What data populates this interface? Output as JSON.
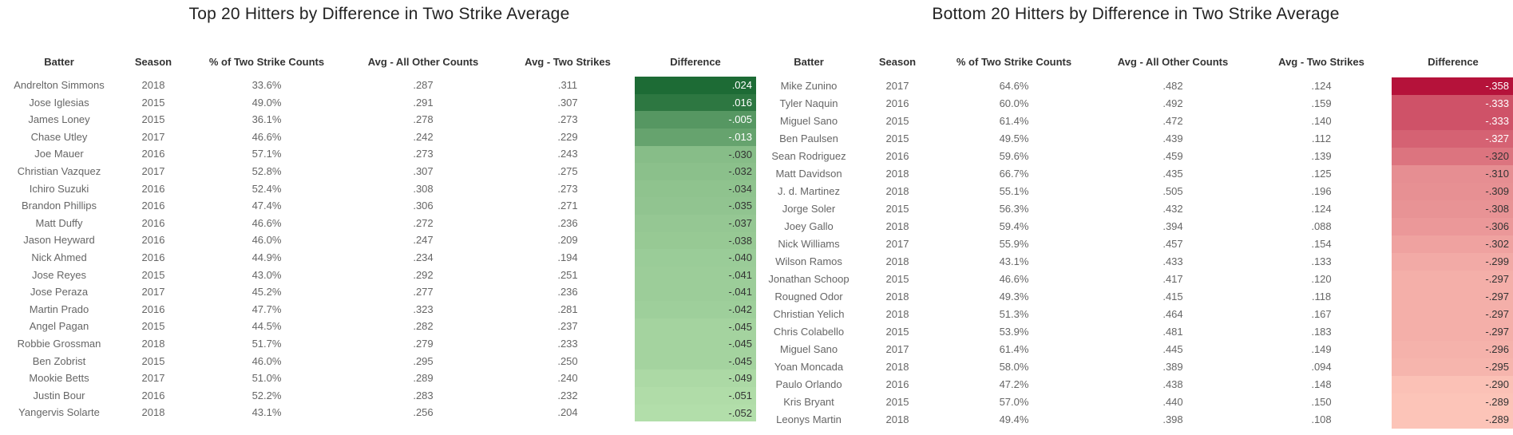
{
  "chart_data": [
    {
      "type": "table",
      "title": "Top 20 Hitters by Difference in Two Strike Average",
      "columns": [
        "Batter",
        "Season",
        "% of Two Strike Counts",
        "Avg - All Other Counts",
        "Avg - Two Strikes",
        "Difference"
      ],
      "rows": [
        [
          "Andrelton Simmons",
          "2018",
          "33.6%",
          ".287",
          ".311",
          ".024"
        ],
        [
          "Jose Iglesias",
          "2015",
          "49.0%",
          ".291",
          ".307",
          ".016"
        ],
        [
          "James Loney",
          "2015",
          "36.1%",
          ".278",
          ".273",
          "-.005"
        ],
        [
          "Chase Utley",
          "2017",
          "46.6%",
          ".242",
          ".229",
          "-.013"
        ],
        [
          "Joe Mauer",
          "2016",
          "57.1%",
          ".273",
          ".243",
          "-.030"
        ],
        [
          "Christian Vazquez",
          "2017",
          "52.8%",
          ".307",
          ".275",
          "-.032"
        ],
        [
          "Ichiro Suzuki",
          "2016",
          "52.4%",
          ".308",
          ".273",
          "-.034"
        ],
        [
          "Brandon Phillips",
          "2016",
          "47.4%",
          ".306",
          ".271",
          "-.035"
        ],
        [
          "Matt Duffy",
          "2016",
          "46.6%",
          ".272",
          ".236",
          "-.037"
        ],
        [
          "Jason Heyward",
          "2016",
          "46.0%",
          ".247",
          ".209",
          "-.038"
        ],
        [
          "Nick Ahmed",
          "2016",
          "44.9%",
          ".234",
          ".194",
          "-.040"
        ],
        [
          "Jose Reyes",
          "2015",
          "43.0%",
          ".292",
          ".251",
          "-.041"
        ],
        [
          "Jose Peraza",
          "2017",
          "45.2%",
          ".277",
          ".236",
          "-.041"
        ],
        [
          "Martin Prado",
          "2016",
          "47.7%",
          ".323",
          ".281",
          "-.042"
        ],
        [
          "Angel Pagan",
          "2015",
          "44.5%",
          ".282",
          ".237",
          "-.045"
        ],
        [
          "Robbie Grossman",
          "2018",
          "51.7%",
          ".279",
          ".233",
          "-.045"
        ],
        [
          "Ben Zobrist",
          "2015",
          "46.0%",
          ".295",
          ".250",
          "-.045"
        ],
        [
          "Mookie Betts",
          "2017",
          "51.0%",
          ".289",
          ".240",
          "-.049"
        ],
        [
          "Justin Bour",
          "2016",
          "52.2%",
          ".283",
          ".232",
          "-.051"
        ],
        [
          "Yangervis Solarte",
          "2018",
          "43.1%",
          ".256",
          ".204",
          "-.052"
        ]
      ],
      "difference_values": [
        0.024,
        0.016,
        -0.005,
        -0.013,
        -0.03,
        -0.032,
        -0.034,
        -0.035,
        -0.037,
        -0.038,
        -0.04,
        -0.041,
        -0.041,
        -0.042,
        -0.045,
        -0.045,
        -0.045,
        -0.049,
        -0.051,
        -0.052
      ],
      "color_scale": {
        "palette": "green",
        "high": "#1d6b35",
        "low": "#b2deaa"
      }
    },
    {
      "type": "table",
      "title": "Bottom 20 Hitters by Difference in Two Strike Average",
      "columns": [
        "Batter",
        "Season",
        "% of Two Strike Counts",
        "Avg - All Other Counts",
        "Avg - Two Strikes",
        "Difference"
      ],
      "rows": [
        [
          "Mike Zunino",
          "2017",
          "64.6%",
          ".482",
          ".124",
          "-.358"
        ],
        [
          "Tyler Naquin",
          "2016",
          "60.0%",
          ".492",
          ".159",
          "-.333"
        ],
        [
          "Miguel Sano",
          "2015",
          "61.4%",
          ".472",
          ".140",
          "-.333"
        ],
        [
          "Ben Paulsen",
          "2015",
          "49.5%",
          ".439",
          ".112",
          "-.327"
        ],
        [
          "Sean Rodriguez",
          "2016",
          "59.6%",
          ".459",
          ".139",
          "-.320"
        ],
        [
          "Matt Davidson",
          "2018",
          "66.7%",
          ".435",
          ".125",
          "-.310"
        ],
        [
          "J. d. Martinez",
          "2018",
          "55.1%",
          ".505",
          ".196",
          "-.309"
        ],
        [
          "Jorge Soler",
          "2015",
          "56.3%",
          ".432",
          ".124",
          "-.308"
        ],
        [
          "Joey Gallo",
          "2018",
          "59.4%",
          ".394",
          ".088",
          "-.306"
        ],
        [
          "Nick Williams",
          "2017",
          "55.9%",
          ".457",
          ".154",
          "-.302"
        ],
        [
          "Wilson Ramos",
          "2018",
          "43.1%",
          ".433",
          ".133",
          "-.299"
        ],
        [
          "Jonathan Schoop",
          "2015",
          "46.6%",
          ".417",
          ".120",
          "-.297"
        ],
        [
          "Rougned Odor",
          "2018",
          "49.3%",
          ".415",
          ".118",
          "-.297"
        ],
        [
          "Christian Yelich",
          "2018",
          "51.3%",
          ".464",
          ".167",
          "-.297"
        ],
        [
          "Chris Colabello",
          "2015",
          "53.9%",
          ".481",
          ".183",
          "-.297"
        ],
        [
          "Miguel Sano",
          "2017",
          "61.4%",
          ".445",
          ".149",
          "-.296"
        ],
        [
          "Yoan Moncada",
          "2018",
          "58.0%",
          ".389",
          ".094",
          "-.295"
        ],
        [
          "Paulo Orlando",
          "2016",
          "47.2%",
          ".438",
          ".148",
          "-.290"
        ],
        [
          "Kris Bryant",
          "2015",
          "57.0%",
          ".440",
          ".150",
          "-.289"
        ],
        [
          "Leonys Martin",
          "2018",
          "49.4%",
          ".398",
          ".108",
          "-.289"
        ]
      ],
      "difference_values": [
        -0.358,
        -0.333,
        -0.333,
        -0.327,
        -0.32,
        -0.31,
        -0.309,
        -0.308,
        -0.306,
        -0.302,
        -0.299,
        -0.297,
        -0.297,
        -0.297,
        -0.297,
        -0.296,
        -0.295,
        -0.29,
        -0.289,
        -0.289
      ],
      "color_scale": {
        "palette": "red",
        "high": "#b5123a",
        "low": "#fcc4b8"
      }
    }
  ]
}
